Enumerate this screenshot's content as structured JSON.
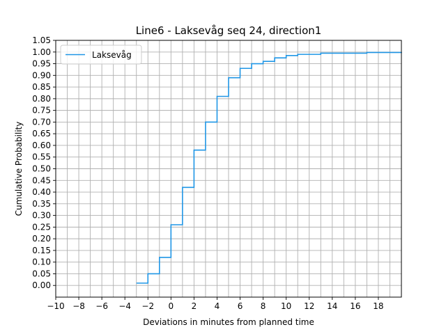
{
  "chart_data": {
    "type": "line",
    "step": "post",
    "title": "Line6 - Laksevåg seq 24, direction1",
    "xlabel": "Deviations in minutes from planned time",
    "ylabel": "Cumulative Probability",
    "xlim": [
      -10,
      20
    ],
    "ylim": [
      -0.05,
      1.05
    ],
    "xticks": [
      -10,
      -8,
      -6,
      -4,
      -2,
      0,
      2,
      4,
      6,
      8,
      10,
      12,
      14,
      16,
      18
    ],
    "xtick_labels": [
      "−10",
      "−8",
      "−6",
      "−4",
      "−2",
      "0",
      "2",
      "4",
      "6",
      "8",
      "10",
      "12",
      "14",
      "16",
      "18"
    ],
    "xgrid": [
      -10,
      -9,
      -8,
      -7,
      -6,
      -5,
      -4,
      -3,
      -2,
      -1,
      0,
      1,
      2,
      3,
      4,
      5,
      6,
      7,
      8,
      9,
      10,
      11,
      12,
      13,
      14,
      15,
      16,
      17,
      18,
      19
    ],
    "yticks": [
      0,
      0.05,
      0.1,
      0.15,
      0.2,
      0.25,
      0.3,
      0.35,
      0.4,
      0.45,
      0.5,
      0.55,
      0.6,
      0.65,
      0.7,
      0.75,
      0.8,
      0.85,
      0.9,
      0.95,
      1.0,
      1.05
    ],
    "ytick_labels": [
      "0.00",
      "0.05",
      "0.10",
      "0.15",
      "0.20",
      "0.25",
      "0.30",
      "0.35",
      "0.40",
      "0.45",
      "0.50",
      "0.55",
      "0.60",
      "0.65",
      "0.70",
      "0.75",
      "0.80",
      "0.85",
      "0.90",
      "0.95",
      "1.00",
      "1.05"
    ],
    "grid": true,
    "legend_position": "top-left",
    "series": [
      {
        "name": "Laksevåg",
        "color": "#1f96e6",
        "x": [
          -3,
          -2,
          -1,
          0,
          1,
          2,
          3,
          4,
          5,
          6,
          7,
          8,
          9,
          10,
          11,
          13,
          17,
          20
        ],
        "y": [
          0.01,
          0.05,
          0.12,
          0.26,
          0.42,
          0.58,
          0.7,
          0.81,
          0.89,
          0.93,
          0.95,
          0.96,
          0.975,
          0.985,
          0.99,
          0.995,
          0.998,
          1.0
        ]
      }
    ]
  }
}
